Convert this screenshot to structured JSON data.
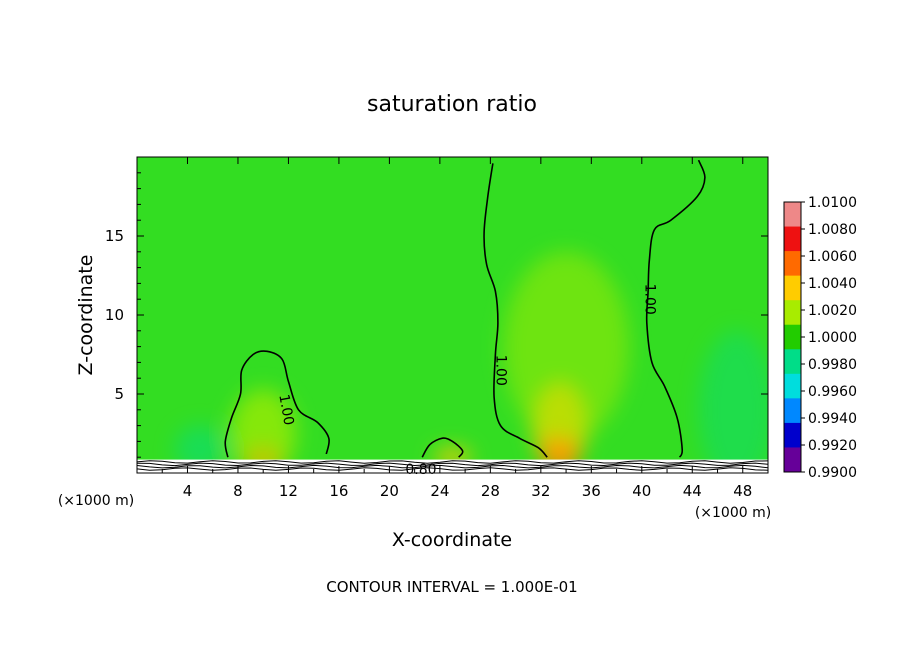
{
  "chart_data": {
    "type": "heatmap",
    "title": "saturation ratio",
    "xlabel": "X-coordinate",
    "ylabel": "Z-coordinate",
    "x_unit_left": "(×1000 m)",
    "x_unit_right": "(×1000 m)",
    "xlim": [
      0,
      50
    ],
    "ylim": [
      0,
      20
    ],
    "x_ticks": [
      4,
      8,
      12,
      16,
      20,
      24,
      28,
      32,
      36,
      40,
      44,
      48
    ],
    "y_ticks": [
      5,
      10,
      15
    ],
    "colorbar": {
      "ticks": [
        "1.0100",
        "1.0080",
        "1.0060",
        "1.0040",
        "1.0020",
        "1.0000",
        "0.9980",
        "0.9960",
        "0.9940",
        "0.9920",
        "0.9900"
      ],
      "colors": [
        "#ee8888",
        "#ee1111",
        "#ff6a00",
        "#ffcc00",
        "#a8ec00",
        "#22cc00",
        "#00dd88",
        "#00dddd",
        "#0088ff",
        "#0000cc",
        "#660099"
      ]
    },
    "background_value": 1.0,
    "background_color": "#33dd22",
    "contour_labels": [
      {
        "text": "1.00",
        "x": 11.8,
        "z": 4.0,
        "rotate": 80
      },
      {
        "text": "1.00",
        "x": 28.8,
        "z": 6.5,
        "rotate": 90
      },
      {
        "text": "1.00",
        "x": 40.6,
        "z": 11.0,
        "rotate": 90
      },
      {
        "text": "0.80",
        "x": 22.5,
        "z": 0.2,
        "rotate": 0
      }
    ],
    "contours": [
      {
        "level": 1.0,
        "points": [
          [
            7.2,
            1.0
          ],
          [
            7.0,
            2.0
          ],
          [
            7.5,
            3.5
          ],
          [
            8.2,
            5.0
          ],
          [
            8.3,
            6.5
          ],
          [
            9.2,
            7.5
          ],
          [
            10.3,
            7.7
          ],
          [
            11.5,
            7.2
          ],
          [
            12.0,
            5.8
          ],
          [
            12.8,
            4.0
          ],
          [
            14.3,
            3.2
          ],
          [
            15.2,
            2.2
          ],
          [
            15.0,
            1.2
          ]
        ]
      },
      {
        "level": 1.0,
        "points": [
          [
            22.6,
            1.0
          ],
          [
            23.2,
            1.8
          ],
          [
            24.2,
            2.2
          ],
          [
            25.0,
            2.0
          ],
          [
            25.8,
            1.4
          ],
          [
            25.5,
            1.0
          ]
        ]
      },
      {
        "level": 1.0,
        "points": [
          [
            28.2,
            19.6
          ],
          [
            27.8,
            17.5
          ],
          [
            27.5,
            15.2
          ],
          [
            27.7,
            13.2
          ],
          [
            28.4,
            11.5
          ],
          [
            28.6,
            9.5
          ],
          [
            28.4,
            7.5
          ],
          [
            28.3,
            4.8
          ],
          [
            28.8,
            3.0
          ],
          [
            30.3,
            2.2
          ],
          [
            31.8,
            1.6
          ],
          [
            32.5,
            1.0
          ]
        ]
      },
      {
        "level": 1.0,
        "points": [
          [
            44.5,
            19.8
          ],
          [
            45.0,
            18.7
          ],
          [
            44.4,
            17.5
          ],
          [
            42.3,
            16.0
          ],
          [
            41.0,
            15.4
          ],
          [
            40.6,
            13.5
          ],
          [
            40.5,
            11.5
          ],
          [
            40.4,
            9.5
          ],
          [
            40.8,
            7.0
          ],
          [
            41.8,
            5.5
          ],
          [
            42.8,
            3.5
          ],
          [
            43.2,
            1.5
          ],
          [
            43.0,
            1.0
          ]
        ]
      }
    ],
    "hotspots": [
      {
        "x": 10.0,
        "z": 0.8,
        "rx": 1.6,
        "rz": 0.9,
        "color": "#ff6a00",
        "opacity": 0.9
      },
      {
        "x": 10.0,
        "z": 2.5,
        "rx": 2.6,
        "rz": 2.8,
        "color": "#a8ec00",
        "opacity": 0.7
      },
      {
        "x": 33.5,
        "z": 1.2,
        "rx": 1.6,
        "rz": 1.2,
        "color": "#ee1111",
        "opacity": 0.9
      },
      {
        "x": 33.5,
        "z": 3.0,
        "rx": 2.2,
        "rz": 2.8,
        "color": "#ffcc00",
        "opacity": 0.75
      },
      {
        "x": 34.0,
        "z": 8.0,
        "rx": 5.0,
        "rz": 6.0,
        "color": "#a8ec00",
        "opacity": 0.5
      },
      {
        "x": 5.0,
        "z": 1.5,
        "rx": 2.0,
        "rz": 1.5,
        "color": "#00dd88",
        "opacity": 0.5
      },
      {
        "x": 47.5,
        "z": 4.0,
        "rx": 3.0,
        "rz": 5.0,
        "color": "#00dd88",
        "opacity": 0.4
      },
      {
        "x": 25.0,
        "z": 1.0,
        "rx": 1.5,
        "rz": 0.6,
        "color": "#ffcc00",
        "opacity": 0.8
      }
    ]
  },
  "footer": {
    "contour_interval": "CONTOUR INTERVAL = 1.000E-01"
  }
}
